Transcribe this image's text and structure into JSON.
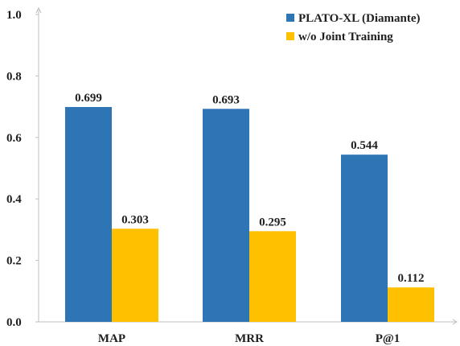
{
  "chart_data": {
    "type": "bar",
    "categories": [
      "MAP",
      "MRR",
      "P@1"
    ],
    "series": [
      {
        "name": "PLATO-XL (Diamante)",
        "values": [
          0.699,
          0.693,
          0.544
        ],
        "labels": [
          "0.699",
          "0.693",
          "0.544"
        ],
        "color": "#2e75b6"
      },
      {
        "name": "w/o Joint Training",
        "values": [
          0.303,
          0.295,
          0.112
        ],
        "labels": [
          "0.303",
          "0.295",
          "0.112"
        ],
        "color": "#ffc000"
      }
    ],
    "ylim": [
      0,
      1.0
    ],
    "yticks": [
      0.0,
      0.2,
      0.4,
      0.6,
      0.8,
      1.0
    ],
    "ytick_labels": [
      "0.0",
      "0.2",
      "0.4",
      "0.6",
      "0.8",
      "1.0"
    ],
    "grid": false,
    "legend_position": "top-right",
    "axis_color": "#bfbfbf"
  }
}
